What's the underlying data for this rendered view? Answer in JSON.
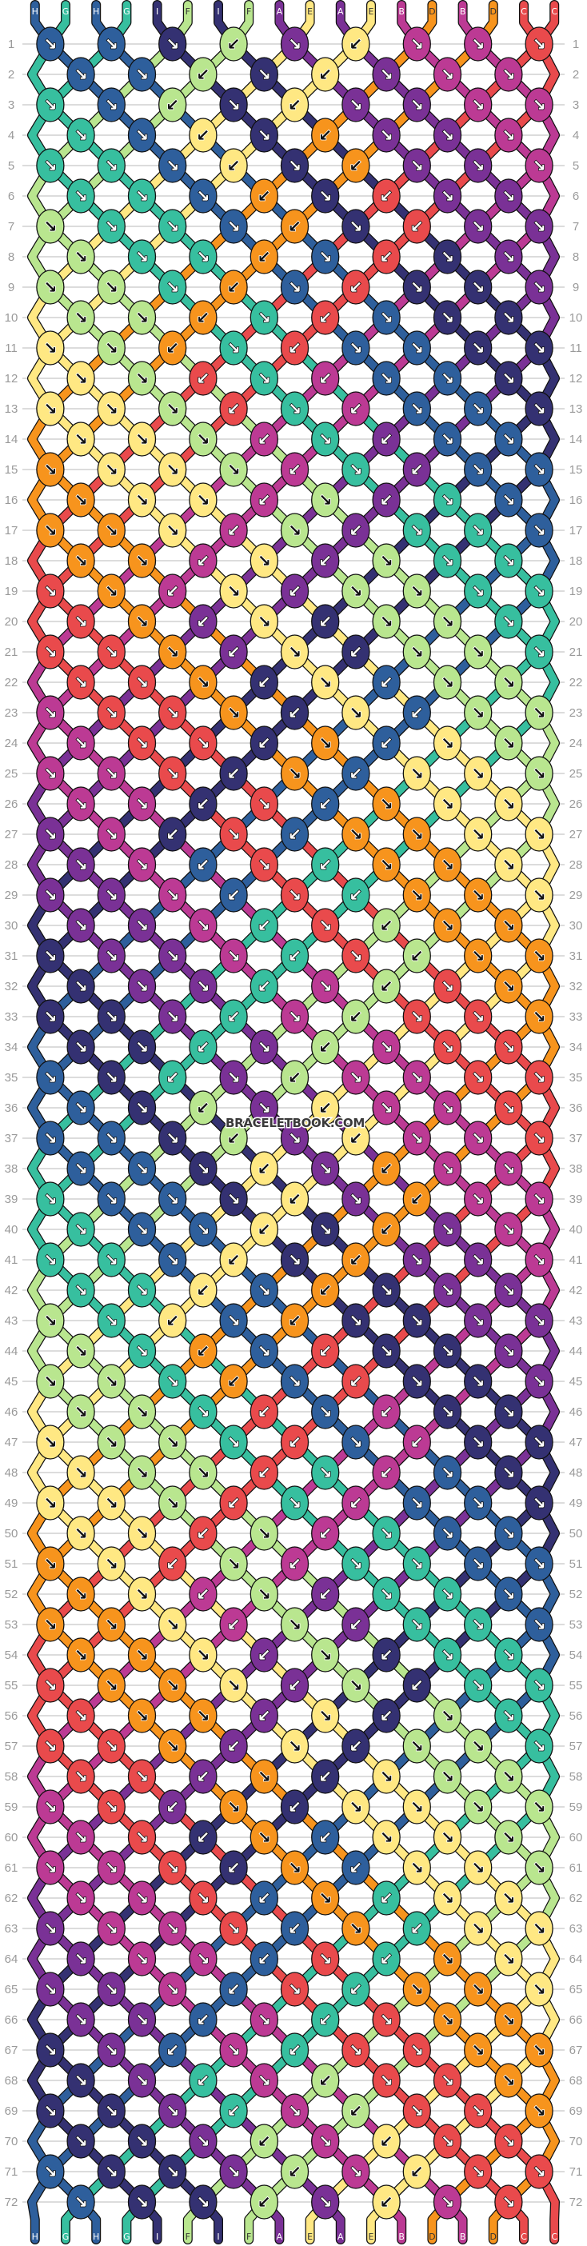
{
  "watermark": "BRACELETBOOK.COM",
  "strings_top": [
    "H",
    "G",
    "H",
    "G",
    "I",
    "F",
    "I",
    "F",
    "A",
    "E",
    "A",
    "E",
    "B",
    "D",
    "B",
    "D",
    "C",
    "C"
  ],
  "strings_bottom": [
    "H",
    "G",
    "H",
    "G",
    "I",
    "F",
    "I",
    "F",
    "A",
    "E",
    "A",
    "E",
    "B",
    "D",
    "B",
    "D",
    "C",
    "C"
  ],
  "colors": {
    "A": "#7a3196",
    "B": "#bc3a94",
    "C": "#e94a4c",
    "D": "#f7941d",
    "E": "#ffe883",
    "F": "#b9e68f",
    "G": "#37bf9f",
    "H": "#2e5f9c",
    "I": "#343172"
  },
  "rows": [
    "↘↘↘↙↘↙↘↘↘",
    "↘↘↙↘↙↘↘↘",
    "↘↘↙↘↙↘↘↘↘",
    "↘↘↙↘↙↘↘↘",
    "↘↘↘↙↘↙↘↘↘",
    "↘↘↘↙↘↙↘↘",
    "↘↘↘↘↙↘↙↘↘",
    "↘↘↘↙↘↙↘↘",
    "↘↘↘↙↘↙↘↘↘",
    "↘↘↙↘↙↘↘↘",
    "↘↘↙↘↙↘↘↘↘",
    "↘↘↙↘↙↘↘↘",
    "↘↘↘↙↘↙↘↘↘",
    "↘↘↘↙↘↙↘↘",
    "↘↘↘↘↙↘↙↘↘",
    "↘↘↘↙↘↙↘↘",
    "↘↘↘↙↘↙↘↘↘",
    "↘↘↙↘↙↘↘↘",
    "↘↘↙↘↙↘↘↘↘",
    "↘↘↙↘↙↘↘↘",
    "↘↘↘↙↘↙↘↘↘",
    "↘↘↘↙↘↙↘↘",
    "↘↘↘↘↙↘↙↘↘",
    "↘↘↘↙↘↙↘↘",
    "↘↘↘↙↘↙↘↘↘",
    "↘↘↙↘↙↘↘↘",
    "↘↘↙↘↙↘↘↘↘",
    "↘↘↙↘↙↘↘↘",
    "↘↘↘↙↘↙↘↘↘",
    "↘↘↘↙↘↙↘↘",
    "↘↘↘↘↙↘↙↘↘",
    "↘↘↘↙↘↙↘↘",
    "↘↘↘↙↘↙↘↘↘",
    "↘↘↙↘↙↘↘↘",
    "↘↘↙↘↙↘↘↘↘",
    "↘↘↙↘↙↘↘↘",
    "↘↘↘↙↘↙↘↘↘",
    "↘↘↘↙↘↙↘↘",
    "↘↘↘↘↙↘↙↘↘",
    "↘↘↘↙↘↙↘↘",
    "↘↘↘↙↘↙↘↘↘",
    "↘↘↙↘↙↘↘↘",
    "↘↘↙↘↙↘↘↘↘",
    "↘↘↙↘↙↘↘↘",
    "↘↘↘↙↘↙↘↘↘",
    "↘↘↘↙↘↙↘↘",
    "↘↘↘↘↙↘↙↘↘",
    "↘↘↘↙↘↙↘↘",
    "↘↘↘↙↘↙↘↘↘",
    "↘↘↙↘↙↘↘↘",
    "↘↘↙↘↙↘↘↘↘",
    "↘↘↙↘↙↘↘↘",
    "↘↘↘↙↘↙↘↘↘",
    "↘↘↘↙↘↙↘↘",
    "↘↘↘↘↙↘↙↘↘",
    "↘↘↘↙↘↙↘↘",
    "↘↘↘↙↘↙↘↘↘",
    "↘↘↙↘↙↘↘↘",
    "↘↘↙↘↙↘↘↘↘",
    "↘↘↙↘↙↘↘↘",
    "↘↘↘↙↘↙↘↘↘",
    "↘↘↘↙↘↙↘↘",
    "↘↘↘↘↙↘↙↘↘",
    "↘↘↘↙↘↙↘↘",
    "↘↘↘↙↘↙↘↘↘",
    "↘↘↙↘↙↘↘↘",
    "↘↘↙↘↙↘↘↘↘",
    "↘↘↙↘↙↘↘↘",
    "↘↘↘↙↘↙↘↘↘",
    "↘↘↘↙↘↙↘↘",
    "↘↘↘↘↙↘↙↘↘",
    "↘↘↘↙↘↙↘↘"
  ]
}
